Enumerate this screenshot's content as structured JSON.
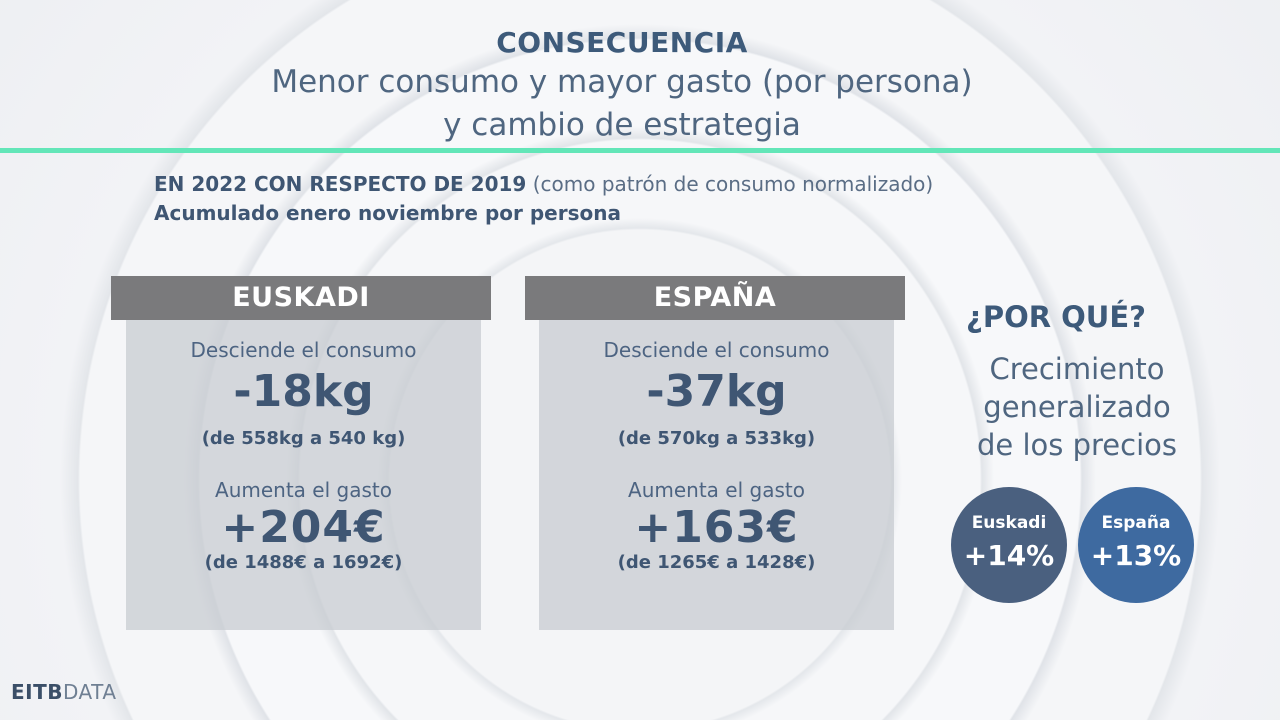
{
  "header": {
    "title": "CONSECUENCIA",
    "line1": "Menor consumo y mayor gasto (por persona)",
    "line2": "y cambio de estrategia"
  },
  "subtitle": {
    "bold": "EN 2022 CON RESPECTO DE 2019",
    "normal": "(como patrón de consumo normalizado)",
    "line2": "Acumulado enero noviembre por persona"
  },
  "cards": [
    {
      "region": "EUSKADI",
      "consumo_label": "Desciende el consumo",
      "consumo_value": "-18kg",
      "consumo_detail": "(de 558kg a 540 kg)",
      "gasto_label": "Aumenta el gasto",
      "gasto_value": "+204€",
      "gasto_detail": "(de 1488€ a 1692€)"
    },
    {
      "region": "ESPAÑA",
      "consumo_label": "Desciende el consumo",
      "consumo_value": "-37kg",
      "consumo_detail": "(de 570kg a 533kg)",
      "gasto_label": "Aumenta el gasto",
      "gasto_value": "+163€",
      "gasto_detail": "(de 1265€ a 1428€)"
    }
  ],
  "sidebar": {
    "question": "¿POR QUÉ?",
    "answer_lines": [
      "Crecimiento",
      "generalizado",
      "de los precios"
    ],
    "badges": [
      {
        "name": "Euskadi",
        "value": "+14%",
        "color": "#4a607f"
      },
      {
        "name": "España",
        "value": "+13%",
        "color": "#3e6aa0"
      }
    ]
  },
  "brand": {
    "bold": "EITB",
    "light": "DATA"
  },
  "colors": {
    "accent_rule": "#63e6b8",
    "header_bar": "#7a7a7c",
    "text": "#3f5673"
  }
}
